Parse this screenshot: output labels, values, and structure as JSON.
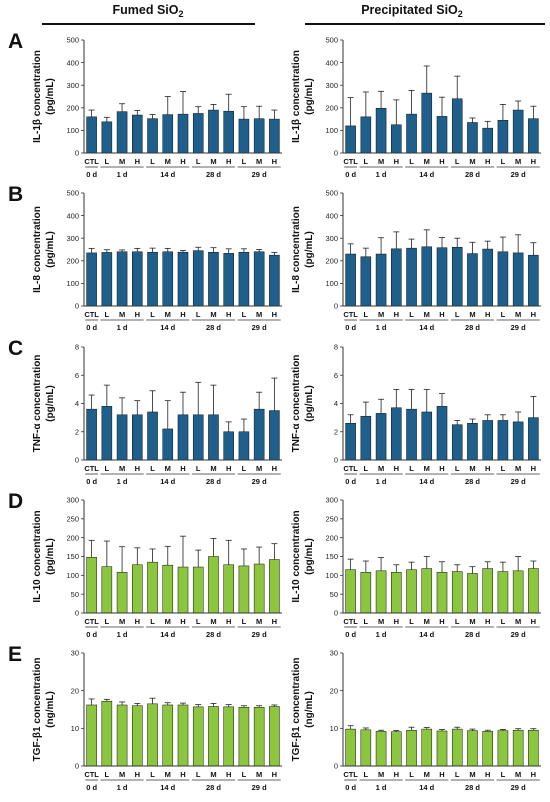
{
  "columns": [
    {
      "title": "Fumed SiO",
      "sub": "2"
    },
    {
      "title": "Precipitated SiO",
      "sub": "2"
    }
  ],
  "bar_labels": [
    "CTL",
    "L",
    "M",
    "H",
    "L",
    "M",
    "H",
    "L",
    "M",
    "H",
    "L",
    "M",
    "H"
  ],
  "group_labels": [
    "0 d",
    "1 d",
    "14 d",
    "28 d",
    "29 d"
  ],
  "colors": {
    "blue": "#1f5f8b",
    "green": "#8cc63f",
    "edge": "#111111"
  },
  "chart_data": [
    {
      "type": "bar",
      "panel": "A",
      "column": "Fumed SiO2",
      "ylabel": "IL-1β concentration",
      "yunit": "(pg/mL)",
      "ylim": [
        0,
        500
      ],
      "yticks": [
        0,
        100,
        200,
        300,
        400,
        500
      ],
      "color": "blue",
      "values": [
        160,
        138,
        183,
        168,
        152,
        170,
        172,
        175,
        190,
        185,
        150,
        152,
        150
      ],
      "errors": [
        30,
        20,
        35,
        20,
        18,
        80,
        100,
        30,
        25,
        75,
        55,
        55,
        40
      ]
    },
    {
      "type": "bar",
      "panel": "A",
      "column": "Precipitated SiO2",
      "ylabel": "IL-1β concentration",
      "yunit": "(pg/mL)",
      "ylim": [
        0,
        500
      ],
      "yticks": [
        0,
        100,
        200,
        300,
        400,
        500
      ],
      "color": "blue",
      "values": [
        120,
        160,
        198,
        125,
        172,
        265,
        162,
        240,
        135,
        110,
        145,
        190,
        152
      ],
      "errors": [
        125,
        110,
        75,
        110,
        105,
        120,
        85,
        100,
        20,
        30,
        70,
        40,
        55
      ]
    },
    {
      "type": "bar",
      "panel": "B",
      "column": "Fumed SiO2",
      "ylabel": "IL-8 concentration",
      "yunit": "(pg/mL)",
      "ylim": [
        0,
        500
      ],
      "yticks": [
        0,
        100,
        200,
        300,
        400,
        500
      ],
      "color": "blue",
      "values": [
        235,
        237,
        240,
        240,
        238,
        240,
        238,
        245,
        238,
        233,
        238,
        240,
        225
      ],
      "errors": [
        20,
        12,
        8,
        15,
        18,
        15,
        8,
        15,
        20,
        20,
        15,
        10,
        12
      ]
    },
    {
      "type": "bar",
      "panel": "B",
      "column": "Precipitated SiO2",
      "ylabel": "IL-8 concentration",
      "yunit": "(pg/mL)",
      "ylim": [
        0,
        500
      ],
      "yticks": [
        0,
        100,
        200,
        300,
        400,
        500
      ],
      "color": "blue",
      "values": [
        230,
        218,
        230,
        253,
        256,
        262,
        258,
        260,
        232,
        252,
        240,
        235,
        225
      ],
      "errors": [
        45,
        38,
        72,
        75,
        40,
        75,
        45,
        40,
        50,
        35,
        65,
        80,
        55
      ]
    },
    {
      "type": "bar",
      "panel": "C",
      "column": "Fumed SiO2",
      "ylabel": "TNF-α concentration",
      "yunit": "(pg/mL)",
      "ylim": [
        0,
        8
      ],
      "yticks": [
        0,
        2,
        4,
        6,
        8
      ],
      "color": "blue",
      "values": [
        3.6,
        3.8,
        3.2,
        3.2,
        3.4,
        2.2,
        3.2,
        3.2,
        3.2,
        2.0,
        2.0,
        3.6,
        3.5
      ],
      "errors": [
        1.0,
        1.5,
        1.2,
        1.0,
        1.5,
        2.0,
        1.6,
        2.3,
        2.1,
        0.7,
        0.9,
        1.2,
        2.3
      ]
    },
    {
      "type": "bar",
      "panel": "C",
      "column": "Precipitated SiO2",
      "ylabel": "TNF-α concentration",
      "yunit": "(pg/mL)",
      "ylim": [
        0,
        8
      ],
      "yticks": [
        0,
        2,
        4,
        6,
        8
      ],
      "color": "blue",
      "values": [
        2.6,
        3.1,
        3.3,
        3.7,
        3.6,
        3.4,
        3.8,
        2.5,
        2.6,
        2.8,
        2.8,
        2.7,
        3.0
      ],
      "errors": [
        0.6,
        1.0,
        1.0,
        1.3,
        1.4,
        1.6,
        0.9,
        0.3,
        0.3,
        0.4,
        0.4,
        0.7,
        1.5
      ]
    },
    {
      "type": "bar",
      "panel": "D",
      "column": "Fumed SiO2",
      "ylabel": "IL-10 concentration",
      "yunit": "(pg/mL)",
      "ylim": [
        0,
        300
      ],
      "yticks": [
        0,
        50,
        100,
        150,
        200,
        250,
        300
      ],
      "color": "green",
      "values": [
        148,
        123,
        108,
        128,
        135,
        127,
        122,
        122,
        150,
        128,
        125,
        130,
        142
      ],
      "errors": [
        45,
        68,
        68,
        45,
        35,
        50,
        82,
        45,
        48,
        65,
        45,
        45,
        42
      ]
    },
    {
      "type": "bar",
      "panel": "D",
      "column": "Precipitated SiO2",
      "ylabel": "IL-10 concentration",
      "yunit": "(pg/mL)",
      "ylim": [
        0,
        300
      ],
      "yticks": [
        0,
        50,
        100,
        150,
        200,
        250,
        300
      ],
      "color": "green",
      "values": [
        115,
        108,
        112,
        108,
        115,
        118,
        108,
        110,
        105,
        118,
        110,
        112,
        118
      ],
      "errors": [
        28,
        30,
        35,
        20,
        20,
        32,
        28,
        18,
        18,
        18,
        25,
        38,
        20
      ]
    },
    {
      "type": "bar",
      "panel": "E",
      "column": "Fumed SiO2",
      "ylabel": "TGF-β1 concentration",
      "yunit": "(ng/mL)",
      "ylim": [
        0,
        30
      ],
      "yticks": [
        0,
        10,
        20,
        30
      ],
      "color": "green",
      "values": [
        16.2,
        17.2,
        16.2,
        16.0,
        16.5,
        16.2,
        16.2,
        15.7,
        15.8,
        15.7,
        15.6,
        15.6,
        15.8
      ],
      "errors": [
        1.6,
        0.5,
        0.8,
        0.6,
        1.5,
        0.6,
        0.5,
        0.6,
        0.8,
        0.6,
        0.4,
        0.4,
        0.4
      ]
    },
    {
      "type": "bar",
      "panel": "E",
      "column": "Precipitated SiO2",
      "ylabel": "TGF-β1 concentration",
      "yunit": "(ng/mL)",
      "ylim": [
        0,
        30
      ],
      "yticks": [
        0,
        10,
        20,
        30
      ],
      "color": "green",
      "values": [
        9.8,
        9.6,
        9.2,
        9.1,
        9.5,
        9.8,
        9.3,
        9.8,
        9.4,
        9.2,
        9.4,
        9.5,
        9.5
      ],
      "errors": [
        0.9,
        0.5,
        0.3,
        0.3,
        0.8,
        0.4,
        0.4,
        0.5,
        0.4,
        0.3,
        0.3,
        0.4,
        0.4
      ]
    }
  ]
}
